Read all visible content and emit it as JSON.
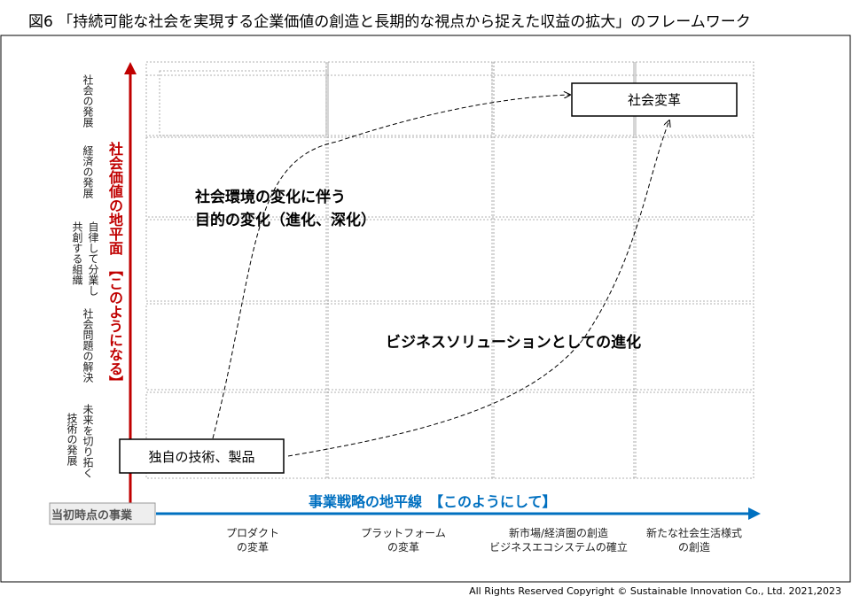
{
  "title": "図6 「持続可能な社会を実現する企業価値の創造と長期的な視点から捉えた収益の拡大」のフレームワーク",
  "y_axis": {
    "label": "社会価値の地平面　【このようになる】",
    "categories": [
      [
        "社会の発展"
      ],
      [
        "経済の発展"
      ],
      [
        "自律して分業し",
        "共創する組織"
      ],
      [
        "社会問題の解決"
      ],
      [
        "未来を切り拓く",
        "技術の発展"
      ]
    ]
  },
  "x_axis": {
    "label": "事業戦略の地平線　【このようにして】",
    "origin": "当初時点の事業",
    "categories": [
      [
        "プロダクト",
        "の変革"
      ],
      [
        "プラットフォーム",
        "の変革"
      ],
      [
        "新市場/経済圏の創造",
        "ビジネスエコシステムの確立"
      ],
      [
        "新たな社会生活様式",
        "の創造"
      ]
    ]
  },
  "nodes": [
    {
      "label": "社会変革"
    },
    {
      "label": "独自の技術、製品"
    }
  ],
  "annotations": [
    [
      "社会環境の変化に伴う",
      "目的の変化（進化、深化）"
    ],
    [
      "ビジネスソリューションとしての進化"
    ]
  ],
  "footer": "All Rights Reserved Copyright © Sustainable Innovation Co., Ltd.  2021,2023"
}
